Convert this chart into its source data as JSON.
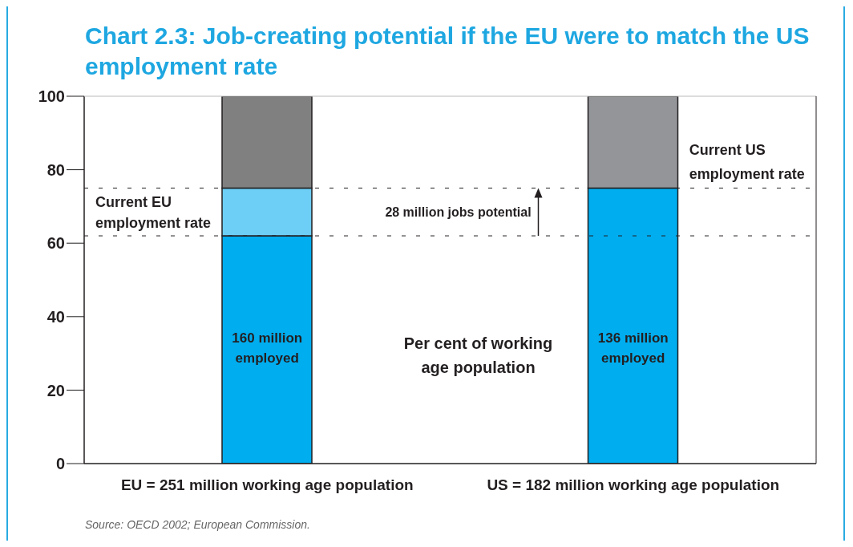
{
  "chart_data": {
    "type": "bar",
    "title": "Chart 2.3: Job-creating potential if the EU were to match the US employment rate",
    "ylabel": "Per cent of working age population",
    "categories": [
      "EU = 251 million working age population",
      "US = 182 million working age population"
    ],
    "stacked": true,
    "series": [
      {
        "color": "#00adef",
        "values": [
          62,
          75
        ]
      },
      {
        "color": "#6dcff6",
        "values": [
          13,
          null
        ]
      },
      {
        "color": "#808080",
        "colors": [
          "#808080",
          "#939598"
        ],
        "values": [
          25,
          25
        ]
      }
    ],
    "ylim": [
      0,
      100
    ],
    "yticks": [
      0,
      20,
      40,
      60,
      80,
      100
    ],
    "ref_lines": [
      {
        "axis": "y",
        "value": 62,
        "label": "Current EU employment rate",
        "line_style": "dashed"
      },
      {
        "axis": "y",
        "value": 75,
        "label": "Current US employment rate",
        "line_style": "dashed"
      }
    ],
    "annotations": [
      "160 million employed",
      "136 million employed",
      "28 million jobs potential",
      "Source: OECD 2002; European Commission."
    ]
  }
}
